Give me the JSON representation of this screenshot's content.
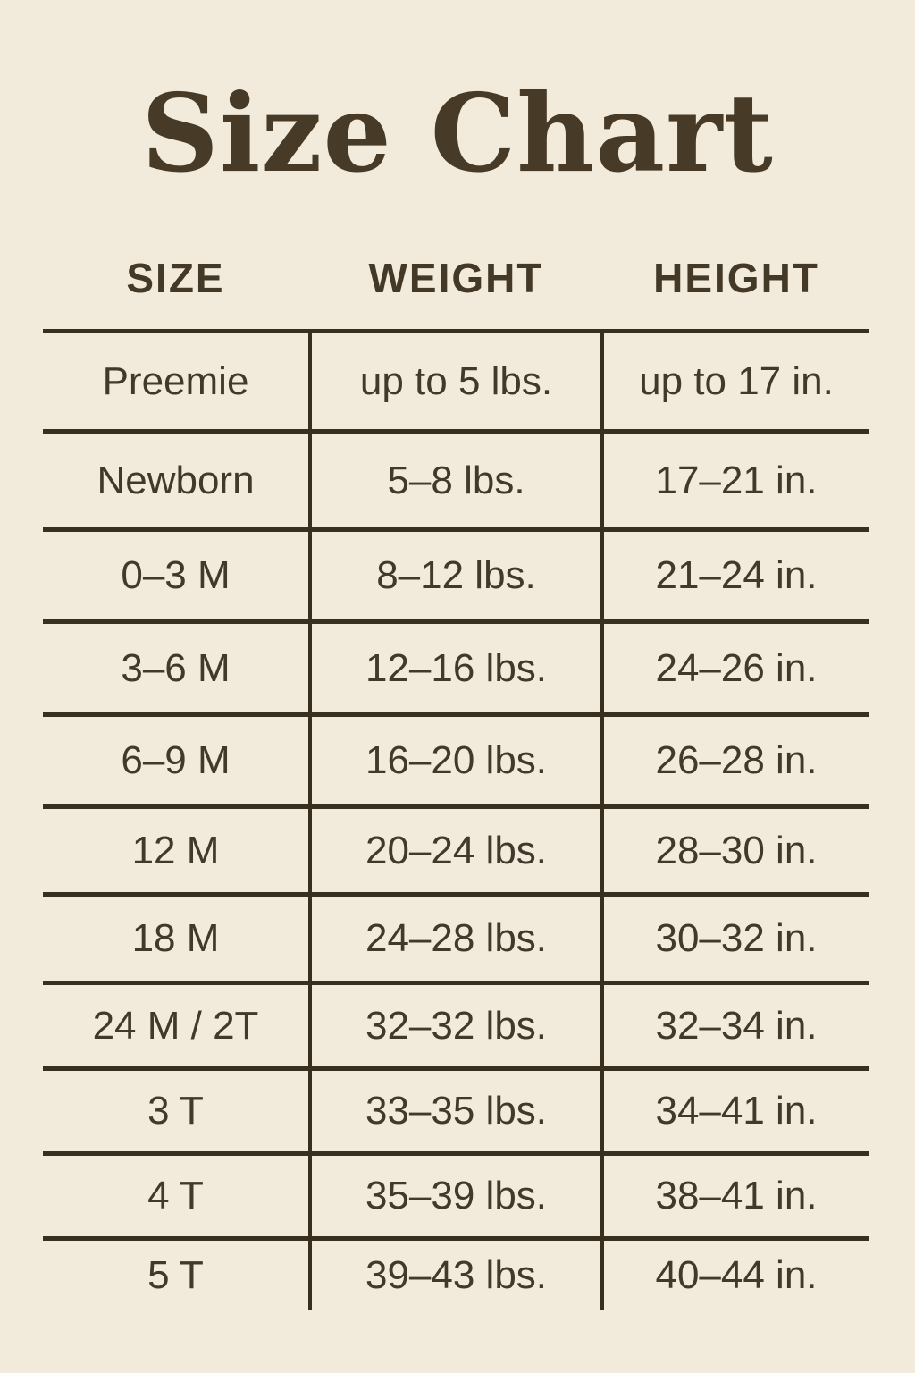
{
  "colors": {
    "background": "#f2ebdc",
    "text": "#453a28",
    "line": "#392f1e"
  },
  "chart_data": {
    "type": "table",
    "title": "Size Chart",
    "columns": [
      "SIZE",
      "WEIGHT",
      "HEIGHT"
    ],
    "rows": [
      [
        "Preemie",
        "up to 5 lbs.",
        "up to 17 in."
      ],
      [
        "Newborn",
        "5–8 lbs.",
        "17–21 in."
      ],
      [
        "0–3 M",
        "8–12 lbs.",
        "21–24 in."
      ],
      [
        "3–6 M",
        "12–16 lbs.",
        "24–26 in."
      ],
      [
        "6–9 M",
        "16–20 lbs.",
        "26–28 in."
      ],
      [
        "12 M",
        "20–24 lbs.",
        "28–30 in."
      ],
      [
        "18 M",
        "24–28 lbs.",
        "30–32 in."
      ],
      [
        "24 M / 2T",
        "32–32 lbs.",
        "32–34 in."
      ],
      [
        "3 T",
        "33–35 lbs.",
        "34–41 in."
      ],
      [
        "4 T",
        "35–39 lbs.",
        "38–41 in."
      ],
      [
        "5 T",
        "39–43 lbs.",
        "40–44 in."
      ]
    ]
  }
}
